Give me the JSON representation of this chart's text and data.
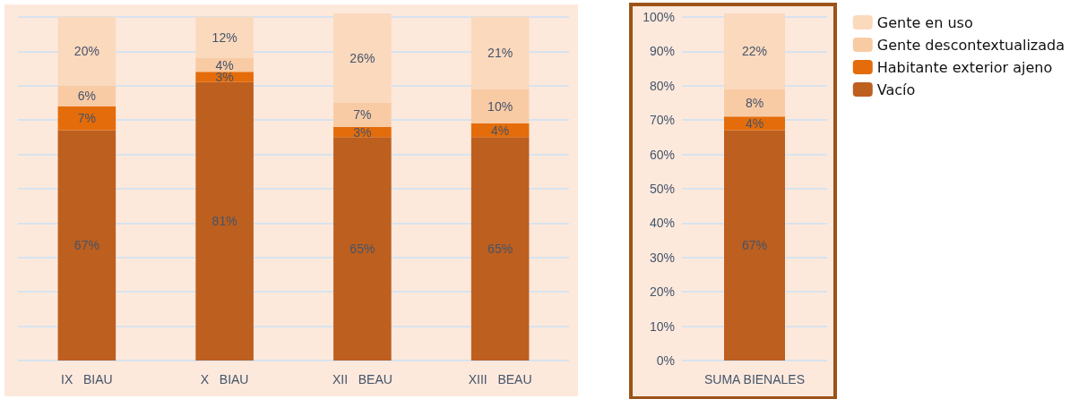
{
  "chart_data": [
    {
      "type": "bar",
      "stacked": true,
      "categories": [
        "IX   BIAU",
        "X   BIAU",
        "XII   BEAU",
        "XIII   BEAU"
      ],
      "ylim": [
        0,
        101
      ],
      "yticks": [
        0,
        10,
        20,
        30,
        40,
        50,
        60,
        70,
        80,
        90,
        100
      ],
      "grid": "y",
      "tick_labels": "x",
      "series": [
        {
          "color": "#bd5f1f",
          "values": [
            67,
            81,
            65,
            65
          ],
          "value_labels": [
            "67%",
            "81%",
            "65%",
            "65%"
          ]
        },
        {
          "color": "#e46c0a",
          "values": [
            7,
            3,
            3,
            4
          ],
          "value_labels": [
            "7%",
            "3%",
            "3%",
            "4%"
          ]
        },
        {
          "color": "#f9cba5",
          "values": [
            6,
            4,
            7,
            10
          ],
          "value_labels": [
            "6%",
            "4%",
            "7%",
            "10%"
          ]
        },
        {
          "color": "#fbd9bd",
          "values": [
            20,
            12,
            26,
            21
          ],
          "value_labels": [
            "20%",
            "12%",
            "26%",
            "21%"
          ]
        }
      ]
    },
    {
      "type": "bar",
      "stacked": true,
      "categories": [
        "SUMA BIENALES"
      ],
      "ylim": [
        0,
        101
      ],
      "yticks": [
        {
          "value": 0,
          "label": "0%"
        },
        {
          "value": 10,
          "label": "10%"
        },
        {
          "value": 20,
          "label": "20%"
        },
        {
          "value": 30,
          "label": "30%"
        },
        {
          "value": 40,
          "label": "40%"
        },
        {
          "value": 50,
          "label": "50%"
        },
        {
          "value": 60,
          "label": "60%"
        },
        {
          "value": 70,
          "label": "70%"
        },
        {
          "value": 80,
          "label": "80%"
        },
        {
          "value": 90,
          "label": "90%"
        },
        {
          "value": 100,
          "label": "100%"
        }
      ],
      "grid": "y",
      "legend": "right",
      "series": [
        {
          "name": "Vacío",
          "color": "#bd5f1f",
          "values": [
            67
          ],
          "value_labels": [
            "67%"
          ]
        },
        {
          "name": "Habitante exterior ajeno",
          "color": "#e46c0a",
          "values": [
            4
          ],
          "value_labels": [
            "4%"
          ]
        },
        {
          "name": "Gente descontextualizada",
          "color": "#f9cba5",
          "values": [
            8
          ],
          "value_labels": [
            "8%"
          ]
        },
        {
          "name": "Gente en uso",
          "color": "#fbd9bd",
          "values": [
            22
          ],
          "value_labels": [
            "22%"
          ]
        }
      ]
    }
  ]
}
